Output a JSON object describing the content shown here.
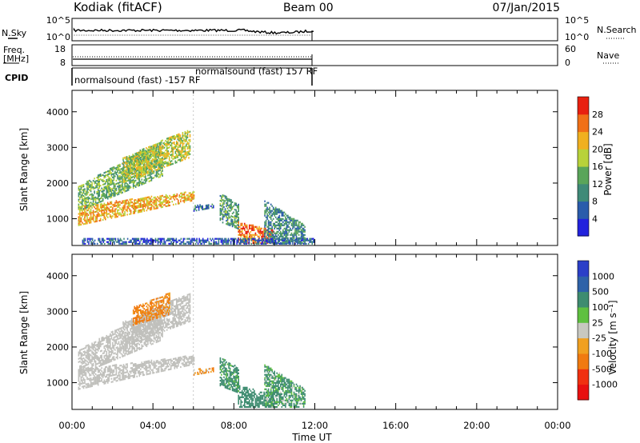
{
  "header": {
    "title": "Kodiak (fitACF)",
    "beam": "Beam 00",
    "date": "07/Jan/2015"
  },
  "panels": {
    "nsky": {
      "label": "N.Sky",
      "ticks": [
        "10^5",
        "10^0"
      ],
      "right_ticks": [
        "10^5",
        "10^0"
      ],
      "right_label": "N.Search"
    },
    "freq": {
      "label_line1": "Freq.",
      "label_line2": "[MHz]",
      "ticks": [
        "18",
        "8"
      ],
      "right_ticks": [
        "60",
        "0"
      ],
      "right_label": "Nave"
    },
    "cpid": {
      "label": "CPID",
      "segments": [
        "normalsound (fast) -157 RF",
        "normalsound (fast) 157 RF"
      ]
    }
  },
  "colors": {
    "power_scale": [
      "#2222dd",
      "#2a5cab",
      "#3f8a78",
      "#5aa55a",
      "#b8d23a",
      "#f0b020",
      "#f07018",
      "#e82010"
    ],
    "velocity_scale": [
      "#2b3fc8",
      "#2e62a8",
      "#3e8c70",
      "#5fc040",
      "#c8c8c0",
      "#f0a020",
      "#f07a10",
      "#f03010",
      "#e81010"
    ],
    "ground_scatter": "#c0c0bc"
  },
  "chart_data": [
    {
      "type": "heatmap",
      "name": "power",
      "ylabel": "Slant Range [km]",
      "yticks": [
        "4000",
        "3000",
        "2000",
        "1000"
      ],
      "ylim": [
        250,
        4600
      ],
      "xlim_hours": [
        0,
        24
      ],
      "colorbar_label": "Power [dB]",
      "colorbar_ticks": [
        "28",
        "24",
        "20",
        "16",
        "12",
        "8",
        "4"
      ],
      "colorbar_range": [
        0,
        32
      ],
      "regions": [
        {
          "t0": 0.3,
          "t1": 6.0,
          "r0_start": 800,
          "r0_end": 1500,
          "r1_start": 1350,
          "r1_end": 1750,
          "level": 22
        },
        {
          "t0": 0.3,
          "t1": 4.5,
          "r0_start": 1200,
          "r0_end": 2200,
          "r1_start": 1900,
          "r1_end": 3200,
          "level": 14
        },
        {
          "t0": 2.5,
          "t1": 5.8,
          "r0_start": 2000,
          "r0_end": 2700,
          "r1_start": 2700,
          "r1_end": 3500,
          "level": 18
        },
        {
          "t0": 6.0,
          "t1": 7.0,
          "r0_start": 1200,
          "r0_end": 1300,
          "r1_start": 1350,
          "r1_end": 1400,
          "level": 8
        },
        {
          "t0": 7.3,
          "t1": 8.2,
          "r0_start": 900,
          "r0_end": 700,
          "r1_start": 1700,
          "r1_end": 1400,
          "level": 12
        },
        {
          "t0": 8.2,
          "t1": 10.0,
          "r0_start": 300,
          "r0_end": 300,
          "r1_start": 900,
          "r1_end": 650,
          "level": 26
        },
        {
          "t0": 9.5,
          "t1": 11.5,
          "r0_start": 300,
          "r0_end": 300,
          "r1_start": 1500,
          "r1_end": 800,
          "level": 10
        },
        {
          "t0": 0.5,
          "t1": 12.0,
          "r0_start": 280,
          "r0_end": 280,
          "r1_start": 420,
          "r1_end": 420,
          "level": 6
        }
      ]
    },
    {
      "type": "heatmap",
      "name": "velocity",
      "ylabel": "Slant Range [km]",
      "yticks": [
        "4000",
        "3000",
        "2000",
        "1000"
      ],
      "ylim": [
        250,
        4600
      ],
      "xlim_hours": [
        0,
        24
      ],
      "xticks": [
        "00:00",
        "04:00",
        "08:00",
        "12:00",
        "16:00",
        "20:00",
        "00:00"
      ],
      "xlabel": "Time UT",
      "colorbar_label": "Velocity [m s⁻¹]",
      "colorbar_ticks": [
        "1000",
        "500",
        "100",
        "25",
        "-25",
        "-100",
        "-500",
        "-1000"
      ],
      "colorbar_range": [
        -1200,
        1200
      ],
      "regions": [
        {
          "t0": 0.3,
          "t1": 6.0,
          "r0_start": 800,
          "r0_end": 1500,
          "r1_start": 1350,
          "r1_end": 1750,
          "level": "ground"
        },
        {
          "t0": 0.3,
          "t1": 4.5,
          "r0_start": 1200,
          "r0_end": 2200,
          "r1_start": 1900,
          "r1_end": 3200,
          "level": "ground"
        },
        {
          "t0": 2.5,
          "t1": 5.8,
          "r0_start": 2000,
          "r0_end": 2700,
          "r1_start": 2700,
          "r1_end": 3500,
          "level": "ground"
        },
        {
          "t0": 3.0,
          "t1": 4.8,
          "r0_start": 2600,
          "r0_end": 2900,
          "r1_start": 3100,
          "r1_end": 3500,
          "level": -150
        },
        {
          "t0": 6.0,
          "t1": 7.0,
          "r0_start": 1200,
          "r0_end": 1300,
          "r1_start": 1350,
          "r1_end": 1400,
          "level": -120
        },
        {
          "t0": 7.3,
          "t1": 8.2,
          "r0_start": 900,
          "r0_end": 700,
          "r1_start": 1700,
          "r1_end": 1400,
          "level": 200
        },
        {
          "t0": 8.2,
          "t1": 10.0,
          "r0_start": 300,
          "r0_end": 300,
          "r1_start": 900,
          "r1_end": 650,
          "level": 300
        },
        {
          "t0": 9.5,
          "t1": 11.5,
          "r0_start": 300,
          "r0_end": 300,
          "r1_start": 1500,
          "r1_end": 800,
          "level": 150
        }
      ]
    }
  ]
}
